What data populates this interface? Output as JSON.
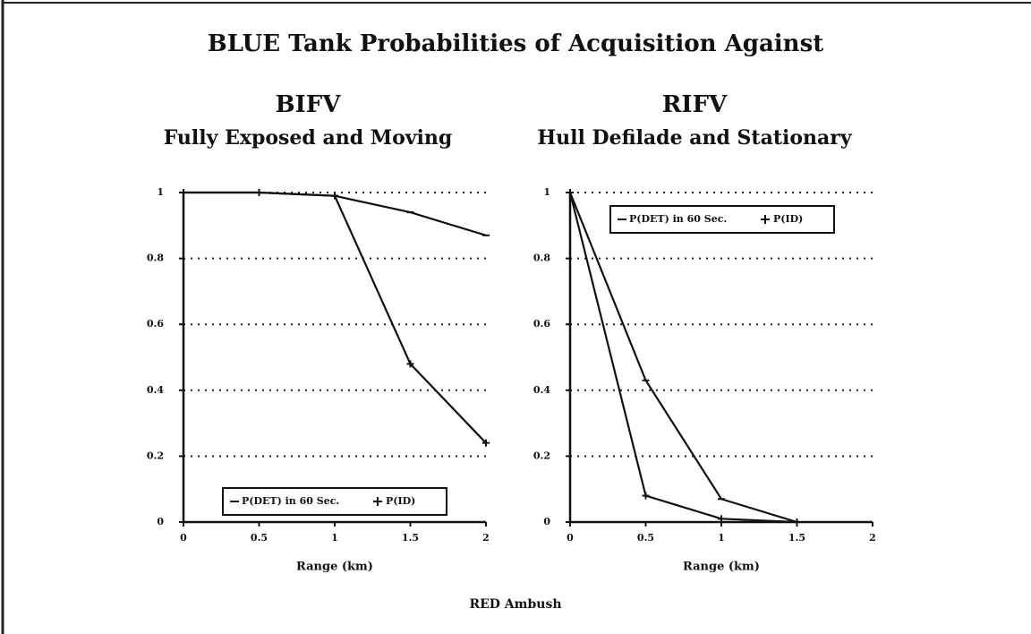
{
  "title": "BLUE Tank Probabilities of Acquisition Against",
  "footer": "RED Ambush",
  "chart_data": [
    {
      "type": "line",
      "title": "BIFV",
      "subtitle": "Fully Exposed and Moving",
      "xlabel": "Range (km)",
      "series": [
        {
          "name": "P(DET) in 60 Sec.",
          "color": "#111111",
          "x": [
            0,
            0.5,
            1,
            1.5,
            2
          ],
          "values": [
            1,
            1,
            0.99,
            0.94,
            0.87
          ]
        },
        {
          "name": "P(ID)",
          "color": "#111111",
          "x": [
            0,
            0.5,
            1,
            1.5,
            2
          ],
          "values": [
            1,
            1,
            0.99,
            0.48,
            0.24
          ]
        }
      ],
      "xlim": [
        0,
        2
      ],
      "xticks": [
        0,
        0.5,
        1,
        1.5,
        2
      ],
      "ylim": [
        0,
        1
      ],
      "yticks": [
        0,
        0.2,
        0.4,
        0.6,
        0.8,
        1
      ],
      "grid": true,
      "legend": "lower center"
    },
    {
      "type": "line",
      "title": "RIFV",
      "subtitle": "Hull Defilade and Stationary",
      "xlabel": "Range (km)",
      "series": [
        {
          "name": "P(DET) in 60 Sec.",
          "color": "#111111",
          "x": [
            0,
            0.5,
            1,
            1.5
          ],
          "values": [
            1,
            0.43,
            0.07,
            0
          ]
        },
        {
          "name": "P(ID)",
          "color": "#111111",
          "x": [
            0,
            0.5,
            1,
            1.5
          ],
          "values": [
            1,
            0.08,
            0.01,
            0
          ]
        }
      ],
      "xlim": [
        0,
        2
      ],
      "xticks": [
        0,
        0.5,
        1,
        1.5,
        2
      ],
      "ylim": [
        0,
        1
      ],
      "yticks": [
        0,
        0.2,
        0.4,
        0.6,
        0.8,
        1
      ],
      "grid": true,
      "legend": "upper left"
    }
  ]
}
